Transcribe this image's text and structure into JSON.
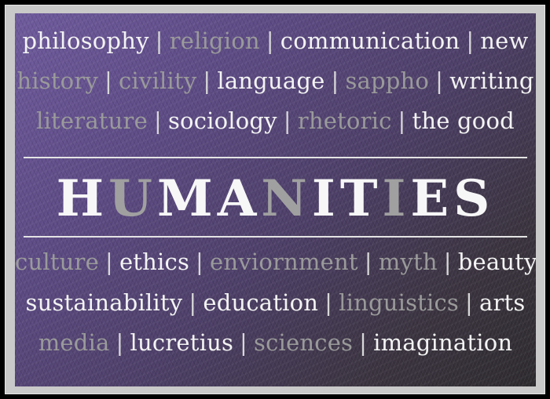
{
  "title_letters": [
    {
      "ch": "H",
      "tone": "w"
    },
    {
      "ch": "U",
      "tone": "g"
    },
    {
      "ch": "M",
      "tone": "w"
    },
    {
      "ch": "A",
      "tone": "w"
    },
    {
      "ch": "N",
      "tone": "g"
    },
    {
      "ch": "I",
      "tone": "w"
    },
    {
      "ch": "T",
      "tone": "w"
    },
    {
      "ch": "I",
      "tone": "g"
    },
    {
      "ch": "E",
      "tone": "w"
    },
    {
      "ch": "S",
      "tone": "w"
    }
  ],
  "separator": "|",
  "top_lines": [
    [
      {
        "t": "philosophy",
        "tone": "w"
      },
      {
        "t": "religion",
        "tone": "g"
      },
      {
        "t": "communication",
        "tone": "w"
      },
      {
        "t": "new",
        "tone": "w"
      }
    ],
    [
      {
        "t": "history",
        "tone": "g"
      },
      {
        "t": "civility",
        "tone": "g"
      },
      {
        "t": "language",
        "tone": "w"
      },
      {
        "t": "sappho",
        "tone": "g"
      },
      {
        "t": "writing",
        "tone": "w"
      }
    ],
    [
      {
        "t": "literature",
        "tone": "g"
      },
      {
        "t": "sociology",
        "tone": "w"
      },
      {
        "t": "rhetoric",
        "tone": "g"
      },
      {
        "t": "the good",
        "tone": "w"
      }
    ]
  ],
  "bottom_lines": [
    [
      {
        "t": "culture",
        "tone": "g"
      },
      {
        "t": "ethics",
        "tone": "w"
      },
      {
        "t": "enviornment",
        "tone": "g"
      },
      {
        "t": "myth",
        "tone": "g"
      },
      {
        "t": "beauty",
        "tone": "w"
      }
    ],
    [
      {
        "t": "sustainability",
        "tone": "w"
      },
      {
        "t": "education",
        "tone": "w"
      },
      {
        "t": "linguistics",
        "tone": "g"
      },
      {
        "t": "arts",
        "tone": "w"
      }
    ],
    [
      {
        "t": "media",
        "tone": "g"
      },
      {
        "t": "lucretius",
        "tone": "w"
      },
      {
        "t": "sciences",
        "tone": "g"
      },
      {
        "t": "imagination",
        "tone": "w"
      }
    ]
  ],
  "colors": {
    "bright_text": "#f3f3f3",
    "muted_text": "#9a9a9a",
    "panel_purple": "#5d4b85",
    "mat": "#c9c9c9"
  }
}
